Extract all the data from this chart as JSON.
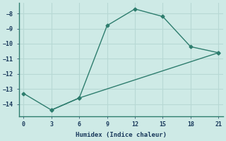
{
  "line1_x": [
    3,
    6,
    9,
    12,
    15,
    18,
    21
  ],
  "line1_y": [
    -14.4,
    -13.6,
    -8.8,
    -7.7,
    -8.2,
    -10.2,
    -10.6
  ],
  "line2_x": [
    0,
    3,
    6,
    21
  ],
  "line2_y": [
    -13.3,
    -14.4,
    -13.6,
    -10.6
  ],
  "color": "#2e7d6e",
  "bg_color": "#ceeae6",
  "grid_color": "#b8d8d4",
  "xlabel": "Humidex (Indice chaleur)",
  "xlim": [
    -0.5,
    21.5
  ],
  "ylim": [
    -14.8,
    -7.3
  ],
  "xticks": [
    0,
    3,
    6,
    9,
    12,
    15,
    18,
    21
  ],
  "yticks": [
    -8,
    -9,
    -10,
    -11,
    -12,
    -13,
    -14
  ],
  "marker": "D",
  "markersize": 2.5,
  "linewidth": 1.0
}
